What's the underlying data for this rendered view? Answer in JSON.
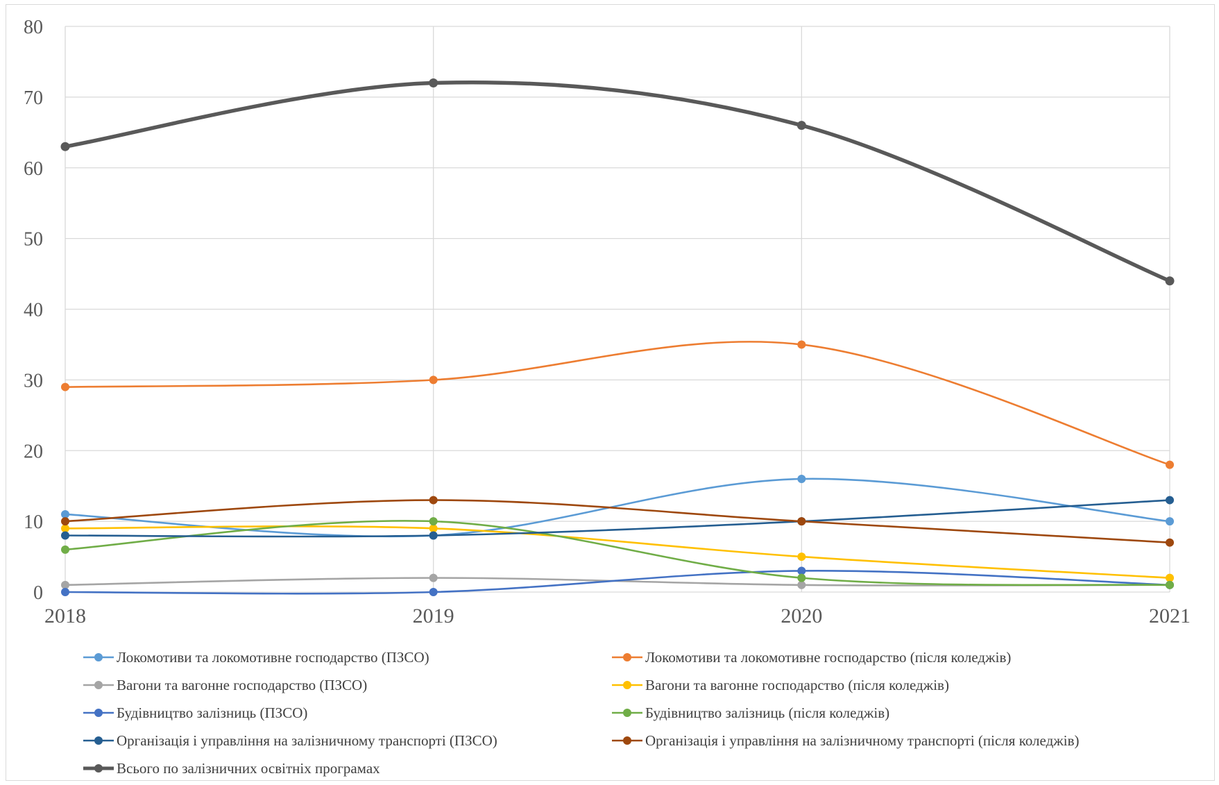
{
  "chart_data": {
    "type": "line",
    "title": "",
    "xlabel": "",
    "ylabel": "",
    "categories": [
      "2018",
      "2019",
      "2020",
      "2021"
    ],
    "ylim": [
      0,
      80
    ],
    "yticks": [
      0,
      10,
      20,
      30,
      40,
      50,
      60,
      70,
      80
    ],
    "grid": true,
    "smooth": true,
    "legend_position": "bottom",
    "series": [
      {
        "name": "Локомотиви та локомотивне господарство (ПЗСО)",
        "color": "#5b9bd5",
        "values": [
          11,
          8,
          16,
          10
        ]
      },
      {
        "name": "Локомотиви та локомотивне господарство (після коледжів)",
        "color": "#ed7d31",
        "values": [
          29,
          30,
          35,
          18
        ]
      },
      {
        "name": "Вагони та вагонне господарство (ПЗСО)",
        "color": "#a5a5a5",
        "values": [
          1,
          2,
          1,
          1
        ]
      },
      {
        "name": "Вагони та вагонне господарство (після коледжів)",
        "color": "#ffc000",
        "values": [
          9,
          9,
          5,
          2
        ]
      },
      {
        "name": "Будівництво залізниць (ПЗСО)",
        "color": "#4472c4",
        "values": [
          0,
          0,
          3,
          1
        ]
      },
      {
        "name": "Будівництво залізниць (після коледжів)",
        "color": "#70ad47",
        "values": [
          6,
          10,
          2,
          1
        ]
      },
      {
        "name": "Організація і управління на залізничному транспорті (ПЗСО)",
        "color": "#255e91",
        "values": [
          8,
          8,
          10,
          13
        ]
      },
      {
        "name": "Організація і управління на залізничному транспорті (після коледжів)",
        "color": "#9e480e",
        "values": [
          10,
          13,
          10,
          7
        ]
      },
      {
        "name": "Всього по залізничних освітніх програмах",
        "color": "#595959",
        "values": [
          63,
          72,
          66,
          44
        ],
        "bold": true
      }
    ]
  }
}
